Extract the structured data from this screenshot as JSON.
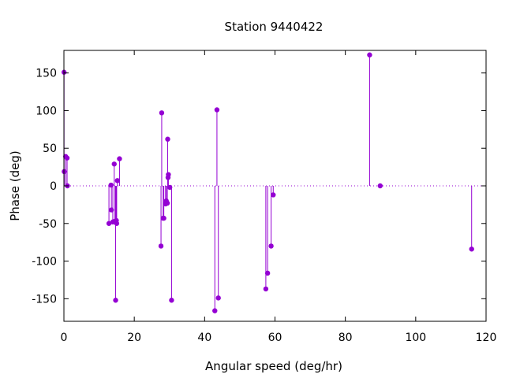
{
  "chart_data": {
    "type": "scatter",
    "style": "impulses-with-points",
    "title": "Station 9440422",
    "xlabel": "Angular speed (deg/hr)",
    "ylabel": "Phase (deg)",
    "xlim": [
      0,
      120
    ],
    "ylim": [
      -180,
      180
    ],
    "xticks": [
      0,
      20,
      40,
      60,
      80,
      100,
      120
    ],
    "yticks": [
      -150,
      -100,
      -50,
      0,
      50,
      100,
      150
    ],
    "grid": false,
    "zero_line": "dotted",
    "color": "#9400d3",
    "series": [
      {
        "points": [
          [
            0.04,
            151
          ],
          [
            0.08,
            19
          ],
          [
            0.5,
            39
          ],
          [
            0.9,
            37
          ],
          [
            1.0,
            0
          ],
          [
            12.8,
            -50
          ],
          [
            13.4,
            1
          ],
          [
            13.5,
            -32
          ],
          [
            13.9,
            -48
          ],
          [
            14.3,
            29
          ],
          [
            14.5,
            -47
          ],
          [
            14.7,
            -152
          ],
          [
            14.9,
            -46
          ],
          [
            15.0,
            -50
          ],
          [
            15.2,
            7
          ],
          [
            15.8,
            36
          ],
          [
            27.6,
            -80
          ],
          [
            27.8,
            97
          ],
          [
            28.2,
            -43
          ],
          [
            28.4,
            -43
          ],
          [
            28.9,
            -24
          ],
          [
            29.1,
            -20
          ],
          [
            29.4,
            -23
          ],
          [
            29.5,
            62
          ],
          [
            29.6,
            11
          ],
          [
            29.7,
            15
          ],
          [
            30.1,
            -2
          ],
          [
            30.6,
            -152
          ],
          [
            42.9,
            -166
          ],
          [
            43.5,
            101
          ],
          [
            43.9,
            -149
          ],
          [
            57.4,
            -137
          ],
          [
            57.9,
            -116
          ],
          [
            58.9,
            -80
          ],
          [
            59.5,
            -12
          ],
          [
            86.9,
            174
          ],
          [
            89.9,
            0
          ],
          [
            115.9,
            -84
          ]
        ]
      }
    ]
  }
}
